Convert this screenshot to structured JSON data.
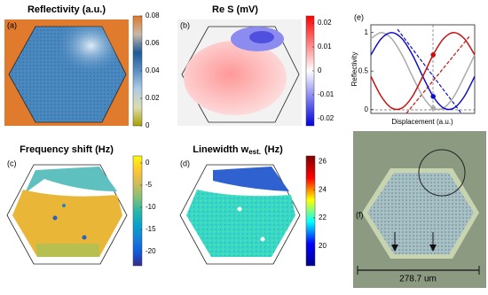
{
  "chart_data": [
    {
      "type": "heatmap",
      "label": "(a)",
      "title": "Reflectivity (a.u.)",
      "clim": [
        0,
        0.08
      ],
      "ticks": [
        0,
        0.02,
        0.04,
        0.06,
        0.08
      ],
      "colormap": [
        "#a8a000",
        "#dcdcb0",
        "#b0cce4",
        "#5a90c4",
        "#1f5a96",
        "#c8b8a8",
        "#e0782a"
      ]
    },
    {
      "type": "heatmap",
      "label": "(b)",
      "title": "Re S (mV)",
      "clim": [
        -0.023,
        0.023
      ],
      "ticks": [
        -0.02,
        -0.01,
        0,
        0.01,
        0.02
      ],
      "colormap": [
        "#0000e0",
        "#ffffff",
        "#ff0000"
      ]
    },
    {
      "type": "heatmap",
      "label": "(c)",
      "title": "Frequency shift (Hz)",
      "clim": [
        -23.2,
        1.6
      ],
      "ticks": [
        -20,
        -15,
        -10,
        -5,
        0
      ],
      "colormap": [
        "#352a87",
        "#0f5cdd",
        "#1481d6",
        "#06a4ca",
        "#2eb7a4",
        "#87bf77",
        "#d1bb59",
        "#fec832",
        "#f9fb0e"
      ]
    },
    {
      "type": "heatmap",
      "label": "(d)",
      "title": "Linewidth w",
      "title_sub": "est.",
      "title_unit": "(Hz)",
      "clim": [
        18.6,
        26.4
      ],
      "ticks": [
        20,
        22,
        24,
        26
      ],
      "colormap": [
        "#00008f",
        "#0000ff",
        "#00ffff",
        "#ffff00",
        "#ff0000",
        "#800000"
      ]
    },
    {
      "type": "line",
      "label": "(e)",
      "xlabel": "Displacement (a.u.)",
      "ylabel": "Reflectivity",
      "x": [
        0,
        1,
        2,
        3,
        4,
        5,
        6,
        7,
        8,
        9,
        10
      ],
      "xlim": [
        0,
        10
      ],
      "ylim": [
        -0.05,
        1.1
      ],
      "yticks": [
        0,
        0.5,
        1
      ],
      "series": [
        {
          "color": "#aaaaaa",
          "values": [
            0.92,
            1.0,
            0.92,
            0.71,
            0.43,
            0.17,
            0.02,
            0.02,
            0.17,
            0.43,
            0.71
          ]
        },
        {
          "color": "#1010c8",
          "values": [
            0.71,
            0.92,
            1.0,
            0.92,
            0.71,
            0.43,
            0.17,
            0.02,
            0.02,
            0.17,
            0.43
          ]
        },
        {
          "color": "#c81010",
          "values": [
            0.43,
            0.17,
            0.02,
            0.02,
            0.17,
            0.43,
            0.71,
            0.92,
            1.0,
            0.92,
            0.71
          ]
        }
      ]
    },
    {
      "type": "image",
      "label": "(f)",
      "scale_label": "278.7 um"
    }
  ]
}
